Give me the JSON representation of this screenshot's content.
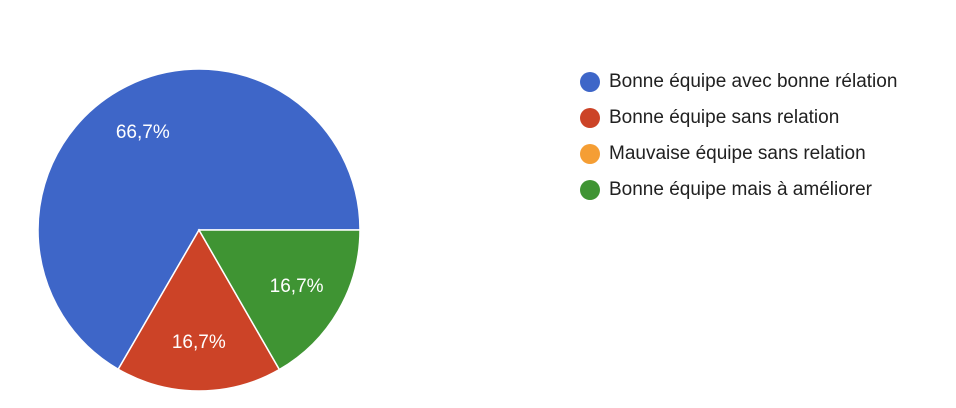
{
  "chart_data": {
    "type": "pie",
    "title": "",
    "legend_position": "right",
    "start_angle_deg": 0,
    "direction": "counterclockwise-from-east",
    "slices": [
      {
        "label": "Bonne équipe avec bonne rélation",
        "value": 66.7,
        "value_label": "66,7%",
        "color": "#3e66c8"
      },
      {
        "label": "Bonne équipe sans relation",
        "value": 16.7,
        "value_label": "16,7%",
        "color": "#cc4327"
      },
      {
        "label": "Mauvaise équipe sans relation",
        "value": 0,
        "value_label": "",
        "color": "#f59e34"
      },
      {
        "label": "Bonne équipe mais à améliorer",
        "value": 16.7,
        "value_label": "16,7%",
        "color": "#3f9433"
      }
    ]
  }
}
